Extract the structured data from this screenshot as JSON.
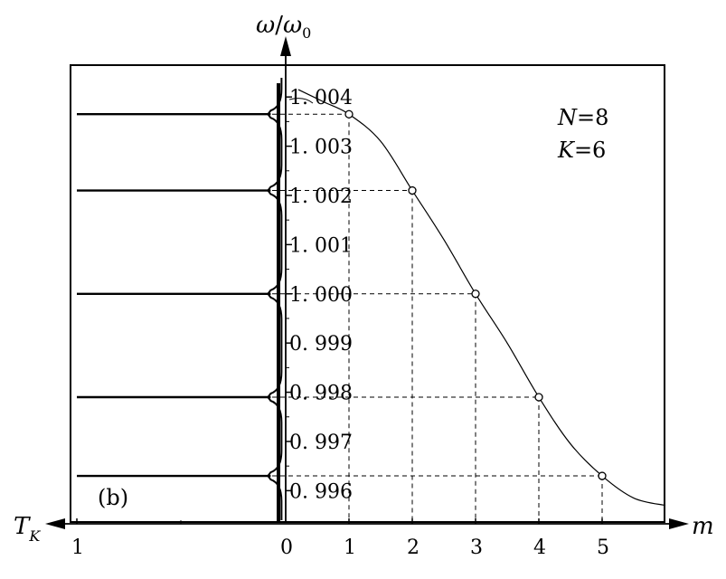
{
  "chart_data": {
    "type": "line",
    "panel_label": "(b)",
    "parameters": {
      "N": "8",
      "K": "6"
    },
    "params_text": {
      "n_label": "N",
      "n_eq": "=8",
      "k_label": "K",
      "k_eq": "=6"
    },
    "right_axis": {
      "label": "m",
      "ticks": [
        "1",
        "2",
        "3",
        "4",
        "5"
      ],
      "xlim": [
        0,
        6
      ]
    },
    "left_axis": {
      "label": "T",
      "label_sub": "K",
      "ticks": [
        "1",
        "0"
      ],
      "xlim": [
        1,
        0
      ]
    },
    "y_axis": {
      "label_main": "ω",
      "label_slash": "/",
      "label_den": "ω",
      "label_sub": "0",
      "ylim": [
        0.9954,
        1.0045
      ],
      "ticks": [
        {
          "value": 1.004,
          "text": "1. 004"
        },
        {
          "value": 1.003,
          "text": "1. 003"
        },
        {
          "value": 1.002,
          "text": "1. 002"
        },
        {
          "value": 1.001,
          "text": "1. 001"
        },
        {
          "value": 1.0,
          "text": "1. 000"
        },
        {
          "value": 0.999,
          "text": "0. 999"
        },
        {
          "value": 0.998,
          "text": "0. 998"
        },
        {
          "value": 0.997,
          "text": "0. 997"
        },
        {
          "value": 0.996,
          "text": "0. 996"
        }
      ]
    },
    "series": [
      {
        "kind": "dispersion",
        "curve": {
          "x": [
            0.2,
            0.6,
            1.0,
            1.5,
            2.0,
            2.5,
            3.0,
            3.5,
            4.0,
            4.5,
            5.0,
            5.5,
            6.0
          ],
          "y": [
            1.00415,
            1.0039,
            1.00365,
            1.0031,
            1.0021,
            1.0011,
            1.0,
            0.999,
            0.9979,
            0.99695,
            0.9963,
            0.99585,
            0.9957
          ]
        },
        "points": {
          "m": [
            1,
            2,
            3,
            4,
            5
          ],
          "omega": [
            1.00365,
            1.0021,
            1.0,
            0.9979,
            0.9963
          ]
        }
      },
      {
        "kind": "transmission",
        "peaks_omega": [
          1.00365,
          1.0021,
          1.0,
          0.9979,
          0.9963
        ],
        "baseline_T": 0.02,
        "peak_T": 1.0
      }
    ]
  }
}
